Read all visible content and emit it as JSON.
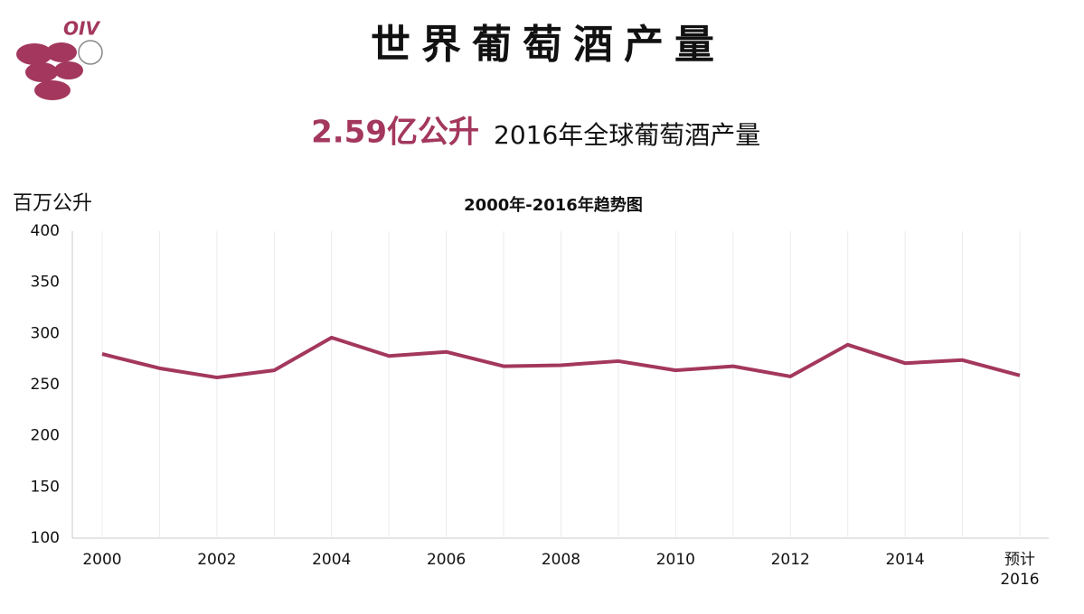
{
  "logo": {
    "text": "OIV"
  },
  "header": {
    "title": "世界葡萄酒产量",
    "headline_value": "2.59亿公升",
    "headline_text": "2016年全球葡萄酒产量"
  },
  "chart_data": {
    "type": "line",
    "title": "2000年-2016年趋势图",
    "y_label": "百万公升",
    "categories": [
      "2000",
      null,
      "2002",
      null,
      "2004",
      null,
      "2006",
      null,
      "2008",
      null,
      "2010",
      null,
      "2012",
      null,
      "2014",
      null,
      "预计 2016"
    ],
    "series": [
      {
        "name": "产量",
        "color": "#a3375d",
        "values": [
          280,
          266,
          257,
          264,
          296,
          278,
          282,
          268,
          269,
          273,
          264,
          268,
          258,
          289,
          271,
          274,
          259
        ]
      }
    ],
    "ylim": [
      100,
      400
    ],
    "yticks": [
      100,
      150,
      200,
      250,
      300,
      350,
      400
    ],
    "xgrid": true
  }
}
